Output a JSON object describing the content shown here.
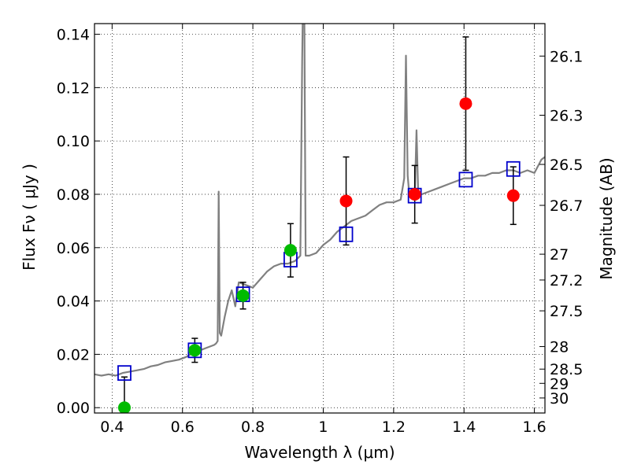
{
  "chart_data": {
    "type": "scatter",
    "xlabel": "Wavelength  λ (μm)",
    "ylabel": "Flux  Fν  ( μJy )",
    "y2label": "Magnitude (AB)",
    "xlim": [
      0.35,
      1.63
    ],
    "ylim": [
      -0.002,
      0.144
    ],
    "grid": true,
    "x_ticks": [
      {
        "value": 0.4,
        "label": "0.4"
      },
      {
        "value": 0.6,
        "label": "0.6"
      },
      {
        "value": 0.8,
        "label": "0.8"
      },
      {
        "value": 1.0,
        "label": "1"
      },
      {
        "value": 1.2,
        "label": "1.2"
      },
      {
        "value": 1.4,
        "label": "1.4"
      },
      {
        "value": 1.6,
        "label": "1.6"
      }
    ],
    "y_ticks": [
      {
        "value": 0.0,
        "label": "0.00"
      },
      {
        "value": 0.02,
        "label": "0.02"
      },
      {
        "value": 0.04,
        "label": "0.04"
      },
      {
        "value": 0.06,
        "label": "0.06"
      },
      {
        "value": 0.08,
        "label": "0.08"
      },
      {
        "value": 0.1,
        "label": "0.10"
      },
      {
        "value": 0.12,
        "label": "0.12"
      },
      {
        "value": 0.14,
        "label": "0.14"
      }
    ],
    "mag_ticks": [
      {
        "mag": 26.1,
        "label": "26.1"
      },
      {
        "mag": 26.3,
        "label": "26.3"
      },
      {
        "mag": 26.5,
        "label": "26.5"
      },
      {
        "mag": 26.7,
        "label": "26.7"
      },
      {
        "mag": 27.0,
        "label": "27"
      },
      {
        "mag": 27.2,
        "label": "27.2"
      },
      {
        "mag": 27.5,
        "label": "27.5"
      },
      {
        "mag": 28.0,
        "label": "28"
      },
      {
        "mag": 28.5,
        "label": "28.5"
      },
      {
        "mag": 29.0,
        "label": "29"
      },
      {
        "mag": 30.0,
        "label": "30"
      }
    ],
    "series": [
      {
        "kind": "line",
        "color": "#808080",
        "x": [
          0.35,
          0.37,
          0.39,
          0.41,
          0.43,
          0.45,
          0.47,
          0.49,
          0.51,
          0.53,
          0.55,
          0.57,
          0.59,
          0.61,
          0.63,
          0.65,
          0.67,
          0.69,
          0.695,
          0.7,
          0.703,
          0.706,
          0.71,
          0.72,
          0.73,
          0.74,
          0.75,
          0.76,
          0.78,
          0.8,
          0.82,
          0.84,
          0.86,
          0.88,
          0.9,
          0.92,
          0.935,
          0.94,
          0.945,
          0.95,
          0.96,
          0.98,
          1.0,
          1.02,
          1.04,
          1.06,
          1.08,
          1.1,
          1.12,
          1.14,
          1.16,
          1.18,
          1.2,
          1.22,
          1.23,
          1.235,
          1.24,
          1.245,
          1.25,
          1.26,
          1.265,
          1.27,
          1.28,
          1.3,
          1.32,
          1.34,
          1.36,
          1.38,
          1.4,
          1.42,
          1.44,
          1.46,
          1.48,
          1.5,
          1.52,
          1.54,
          1.56,
          1.58,
          1.6,
          1.62,
          1.63
        ],
        "y": [
          0.0125,
          0.012,
          0.0125,
          0.012,
          0.013,
          0.0135,
          0.014,
          0.0145,
          0.0155,
          0.016,
          0.017,
          0.0175,
          0.018,
          0.019,
          0.0205,
          0.0215,
          0.0225,
          0.0235,
          0.024,
          0.025,
          0.081,
          0.028,
          0.027,
          0.034,
          0.04,
          0.044,
          0.038,
          0.047,
          0.046,
          0.045,
          0.048,
          0.051,
          0.053,
          0.054,
          0.054,
          0.055,
          0.057,
          0.13,
          0.18,
          0.057,
          0.057,
          0.058,
          0.061,
          0.063,
          0.066,
          0.068,
          0.07,
          0.071,
          0.072,
          0.074,
          0.076,
          0.077,
          0.077,
          0.078,
          0.086,
          0.132,
          0.087,
          0.079,
          0.079,
          0.079,
          0.104,
          0.08,
          0.08,
          0.081,
          0.082,
          0.083,
          0.084,
          0.085,
          0.086,
          0.086,
          0.087,
          0.087,
          0.088,
          0.088,
          0.089,
          0.089,
          0.088,
          0.089,
          0.088,
          0.093,
          0.094
        ]
      },
      {
        "kind": "model_squares",
        "color": "#0000cc",
        "x": [
          0.435,
          0.635,
          0.772,
          0.907,
          1.065,
          1.26,
          1.405,
          1.54
        ],
        "y": [
          0.013,
          0.0215,
          0.0425,
          0.0555,
          0.065,
          0.0795,
          0.0855,
          0.0895
        ]
      },
      {
        "kind": "points",
        "color": "#00bb00",
        "x": [
          0.435,
          0.635,
          0.772,
          0.907
        ],
        "y": [
          0.0,
          0.0215,
          0.042,
          0.059
        ],
        "yerr": [
          0.0115,
          0.0045,
          0.005,
          0.01
        ]
      },
      {
        "kind": "points",
        "color": "#ff0000",
        "x": [
          1.065,
          1.26,
          1.405,
          1.54
        ],
        "y": [
          0.0775,
          0.08,
          0.114,
          0.0795
        ],
        "yerr": [
          0.0165,
          0.0108,
          0.025,
          0.0108
        ]
      }
    ]
  }
}
